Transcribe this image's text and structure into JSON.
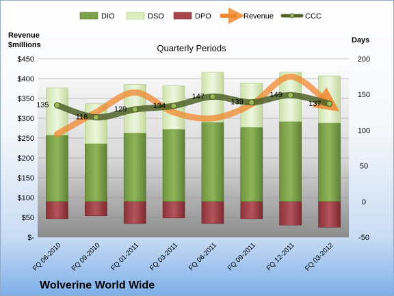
{
  "chart_data": {
    "type": "bar",
    "title": "Quarterly Periods",
    "company": "Wolverine World Wide",
    "left_axis_label_line1": "Revenue",
    "left_axis_label_line2": "$millions",
    "right_axis_label": "Days",
    "left_axis": {
      "range": [
        0,
        450
      ],
      "ticks": [
        "$-",
        "$50",
        "$100",
        "$150",
        "$200",
        "$250",
        "$300",
        "$350",
        "$400",
        "$450"
      ]
    },
    "right_axis": {
      "range": [
        -50,
        200
      ],
      "ticks": [
        "-50",
        "0",
        "50",
        "100",
        "150",
        "200"
      ]
    },
    "categories": [
      "FQ 06-2010",
      "FQ 09-2010",
      "FQ 01-2011",
      "FQ 03-2011",
      "FQ 06-2011",
      "FQ 09-2011",
      "FQ 12-2011",
      "FQ 03-2012"
    ],
    "legend": [
      "DIO",
      "DSO",
      "DPO",
      "Revenue",
      "CCC"
    ],
    "series": [
      {
        "name": "DIO",
        "axis": "right",
        "values": [
          93,
          81,
          96,
          101,
          111,
          104,
          112,
          110
        ],
        "color": "#7da24a"
      },
      {
        "name": "DSO",
        "axis": "right",
        "values": [
          66,
          56,
          68,
          61,
          70,
          62,
          69,
          66
        ],
        "color": "#dceec0"
      },
      {
        "name": "DPO",
        "axis": "right",
        "values": [
          -24,
          -20,
          -31,
          -23,
          -31,
          -24,
          -33,
          -36
        ],
        "color": "#a8454c"
      },
      {
        "name": "Revenue",
        "axis": "left",
        "values": [
          260,
          315,
          365,
          315,
          300,
          335,
          405,
          335
        ],
        "color": "#f0882e"
      },
      {
        "name": "CCC",
        "axis": "right",
        "values": [
          135,
          118,
          129,
          134,
          147,
          139,
          149,
          137
        ],
        "color": "#4f6228"
      }
    ],
    "ccc_labels": [
      "135",
      "118",
      "129",
      "134",
      "147",
      "139",
      "149",
      "137"
    ]
  }
}
